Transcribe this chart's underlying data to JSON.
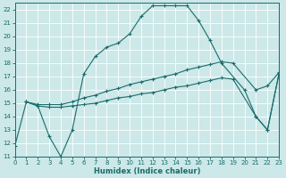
{
  "xlabel": "Humidex (Indice chaleur)",
  "bg_color": "#cce8e8",
  "grid_color": "#b0d8d8",
  "line_color": "#1a6b6b",
  "xlim": [
    0,
    23
  ],
  "ylim": [
    11,
    22.5
  ],
  "xticks": [
    0,
    1,
    2,
    3,
    4,
    5,
    6,
    7,
    8,
    9,
    10,
    11,
    12,
    13,
    14,
    15,
    16,
    17,
    18,
    19,
    20,
    21,
    22,
    23
  ],
  "yticks": [
    11,
    12,
    13,
    14,
    15,
    16,
    17,
    18,
    19,
    20,
    21,
    22
  ],
  "line1_x": [
    0,
    1,
    2,
    3,
    4,
    5,
    6,
    7,
    8,
    9,
    10,
    11,
    12,
    13,
    14,
    15,
    16,
    17,
    18,
    20,
    21,
    22,
    23
  ],
  "line1_y": [
    11.8,
    15.1,
    14.8,
    12.5,
    11.0,
    13.0,
    17.2,
    18.5,
    19.2,
    19.5,
    20.2,
    21.5,
    22.3,
    22.3,
    22.3,
    22.3,
    21.2,
    19.7,
    18.0,
    16.0,
    14.0,
    13.0,
    17.2
  ],
  "line2_x": [
    1,
    2,
    3,
    4,
    5,
    6,
    7,
    8,
    9,
    10,
    11,
    12,
    13,
    14,
    15,
    16,
    17,
    18,
    19,
    21,
    22,
    23
  ],
  "line2_y": [
    15.1,
    14.9,
    14.9,
    14.9,
    15.1,
    15.4,
    15.6,
    15.9,
    16.1,
    16.4,
    16.6,
    16.8,
    17.0,
    17.2,
    17.5,
    17.7,
    17.9,
    18.1,
    18.0,
    16.0,
    16.3,
    17.3
  ],
  "line3_x": [
    1,
    2,
    3,
    4,
    5,
    6,
    7,
    8,
    9,
    10,
    11,
    12,
    13,
    14,
    15,
    16,
    17,
    18,
    19,
    21,
    22,
    23
  ],
  "line3_y": [
    15.1,
    14.8,
    14.7,
    14.7,
    14.8,
    14.9,
    15.0,
    15.2,
    15.4,
    15.5,
    15.7,
    15.8,
    16.0,
    16.2,
    16.3,
    16.5,
    16.7,
    16.9,
    16.8,
    14.0,
    13.0,
    17.2
  ]
}
